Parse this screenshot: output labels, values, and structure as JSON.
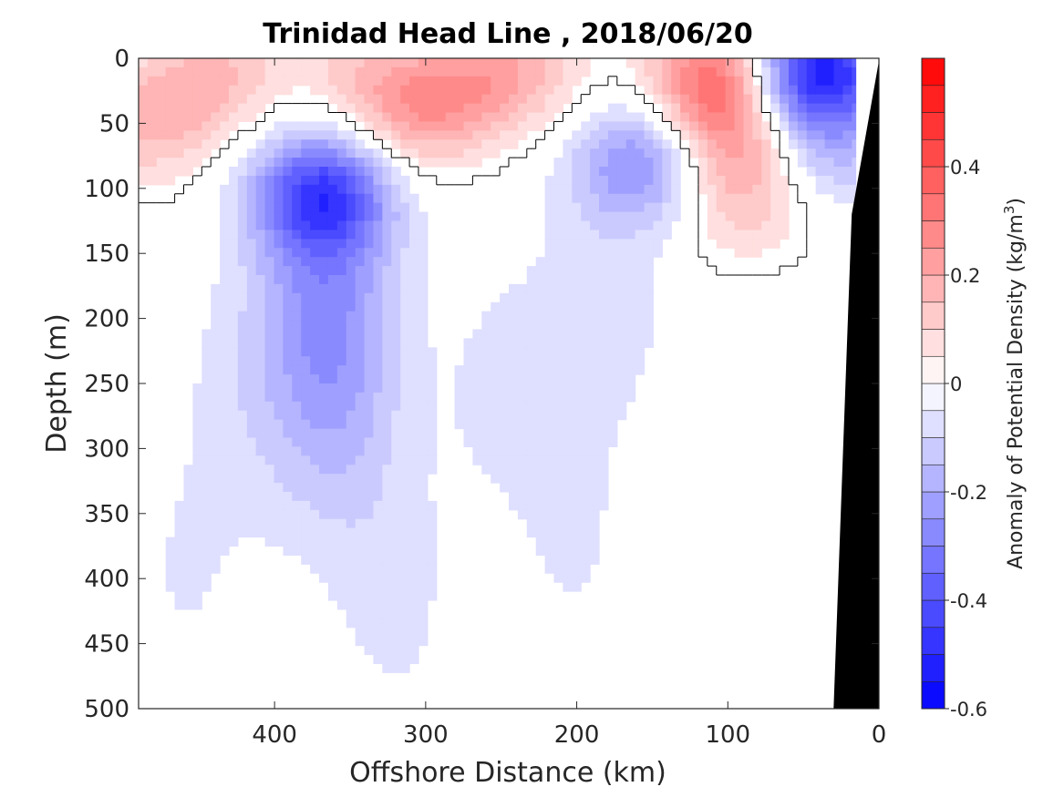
{
  "chart_data": {
    "type": "heatmap",
    "title": "Trinidad Head Line , 2018/06/20",
    "xlabel": "Offshore Distance (km)",
    "ylabel": "Depth (m)",
    "x_ticks": [
      "400",
      "300",
      "200",
      "100",
      "0"
    ],
    "y_ticks": [
      "0",
      "50",
      "100",
      "150",
      "200",
      "250",
      "300",
      "350",
      "400",
      "450",
      "500"
    ],
    "xlim": [
      490,
      0
    ],
    "ylim": [
      0,
      500
    ],
    "x_reversed": true,
    "y_reversed": true,
    "colorbar": {
      "label": "Anomaly of Potential Density (kg/m",
      "label_superscript": "3",
      "label_close": ")",
      "ticks": [
        "0.4",
        "0.2",
        "0",
        "-0.2",
        "-0.4",
        "-0.6"
      ],
      "range": [
        -0.6,
        0.6
      ],
      "levels_step": 0.05,
      "colormap": "blue-white-red",
      "low_color": "#0000ff",
      "mid_color": "#ffffff",
      "high_color": "#ff0000"
    },
    "zero_contour": true,
    "bathymetry_color": "#000000",
    "features": [
      {
        "x": 440,
        "y": 15,
        "value": 0.15
      },
      {
        "x": 485,
        "y": 50,
        "value": 0.15
      },
      {
        "x": 350,
        "y": 5,
        "value": 0.1
      },
      {
        "x": 310,
        "y": 40,
        "value": 0.2
      },
      {
        "x": 265,
        "y": 20,
        "value": 0.15
      },
      {
        "x": 230,
        "y": 5,
        "value": 0.1
      },
      {
        "x": 105,
        "y": 15,
        "value": 0.35
      },
      {
        "x": 95,
        "y": 60,
        "value": 0.2
      },
      {
        "x": 90,
        "y": 110,
        "value": 0.12
      },
      {
        "x": 35,
        "y": 5,
        "value": -0.4
      },
      {
        "x": 60,
        "y": 20,
        "value": -0.2
      },
      {
        "x": 30,
        "y": 70,
        "value": -0.15
      },
      {
        "x": 370,
        "y": 105,
        "value": -0.35
      },
      {
        "x": 365,
        "y": 170,
        "value": -0.2
      },
      {
        "x": 360,
        "y": 270,
        "value": -0.12
      },
      {
        "x": 155,
        "y": 80,
        "value": -0.25
      },
      {
        "x": 180,
        "y": 180,
        "value": -0.08
      },
      {
        "x": 420,
        "y": 250,
        "value": -0.06
      },
      {
        "x": 250,
        "y": 250,
        "value": -0.06
      },
      {
        "x": 320,
        "y": 420,
        "value": -0.06
      },
      {
        "x": 200,
        "y": 380,
        "value": -0.05
      },
      {
        "x": 460,
        "y": 400,
        "value": -0.05
      }
    ]
  }
}
